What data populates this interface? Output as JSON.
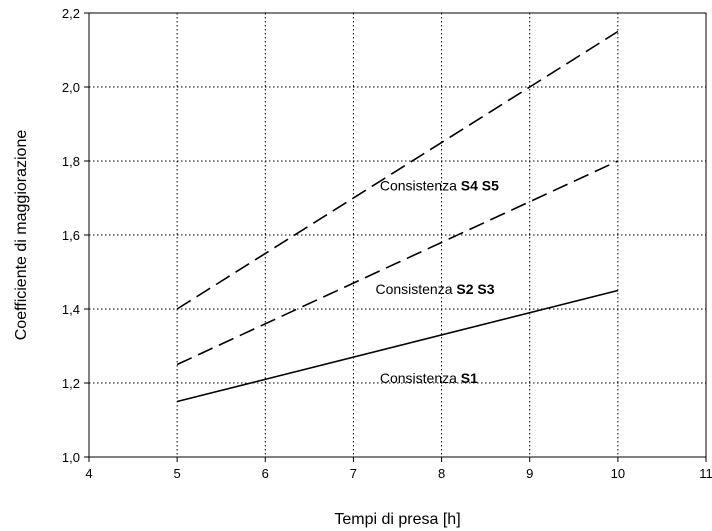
{
  "chart_data": {
    "type": "line",
    "xlabel": "Tempi di presa [h]",
    "ylabel": "Coefficiente di maggiorazione",
    "xlim": [
      4,
      11
    ],
    "ylim": [
      1.0,
      2.2
    ],
    "xticks": [
      "4",
      "5",
      "6",
      "7",
      "8",
      "9",
      "10",
      "11"
    ],
    "yticks": [
      "1,0",
      "1,2",
      "1,4",
      "1,6",
      "1,8",
      "2,0",
      "2,2"
    ],
    "grid": true,
    "series": [
      {
        "name": "S4 S5",
        "style": "dashed",
        "color": "#000000",
        "x": [
          5,
          10
        ],
        "y": [
          1.4,
          2.15
        ]
      },
      {
        "name": "S2 S3",
        "style": "dashed",
        "color": "#000000",
        "x": [
          5,
          10
        ],
        "y": [
          1.25,
          1.8
        ]
      },
      {
        "name": "S1",
        "style": "solid",
        "color": "#000000",
        "x": [
          5,
          10
        ],
        "y": [
          1.15,
          1.45
        ]
      }
    ],
    "annotations": [
      {
        "prefix": "Consistenza",
        "bold": "S4 S5",
        "x": 7.3,
        "y": 1.72
      },
      {
        "prefix": "Consistenza",
        "bold": "S2 S3",
        "x": 7.25,
        "y": 1.44
      },
      {
        "prefix": "Consistenza",
        "bold": "S1",
        "x": 7.3,
        "y": 1.2
      }
    ]
  }
}
